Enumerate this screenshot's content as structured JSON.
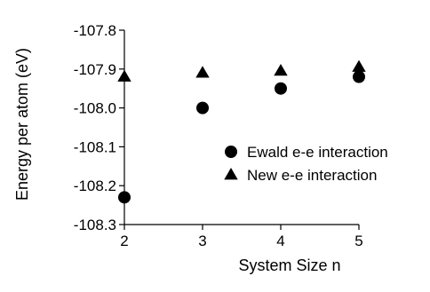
{
  "chart_data": {
    "type": "scatter",
    "xlabel": "System Size n",
    "ylabel": "Energy per atom (eV)",
    "xlim": [
      2,
      5
    ],
    "ylim": [
      -108.3,
      -107.8
    ],
    "x_ticks": [
      2,
      3,
      4,
      5
    ],
    "x_tick_labels": [
      "2",
      "3",
      "4",
      "5"
    ],
    "y_ticks": [
      -107.8,
      -107.9,
      -108.0,
      -108.1,
      -108.2,
      -108.3
    ],
    "y_tick_labels": [
      "-107.8",
      "-107.9",
      "-108.0",
      "-108.1",
      "-108.2",
      "-108.3"
    ],
    "grid": false,
    "legend_position": "right",
    "series": [
      {
        "name": "Ewald e-e interaction",
        "marker": "circle",
        "color": "#000000",
        "x": [
          2,
          3,
          4,
          5
        ],
        "y": [
          -108.23,
          -108.0,
          -107.95,
          -107.92
        ]
      },
      {
        "name": "New e-e interaction",
        "marker": "triangle",
        "color": "#000000",
        "x": [
          2,
          3,
          4,
          5
        ],
        "y": [
          -107.92,
          -107.91,
          -107.905,
          -107.895
        ]
      }
    ]
  }
}
